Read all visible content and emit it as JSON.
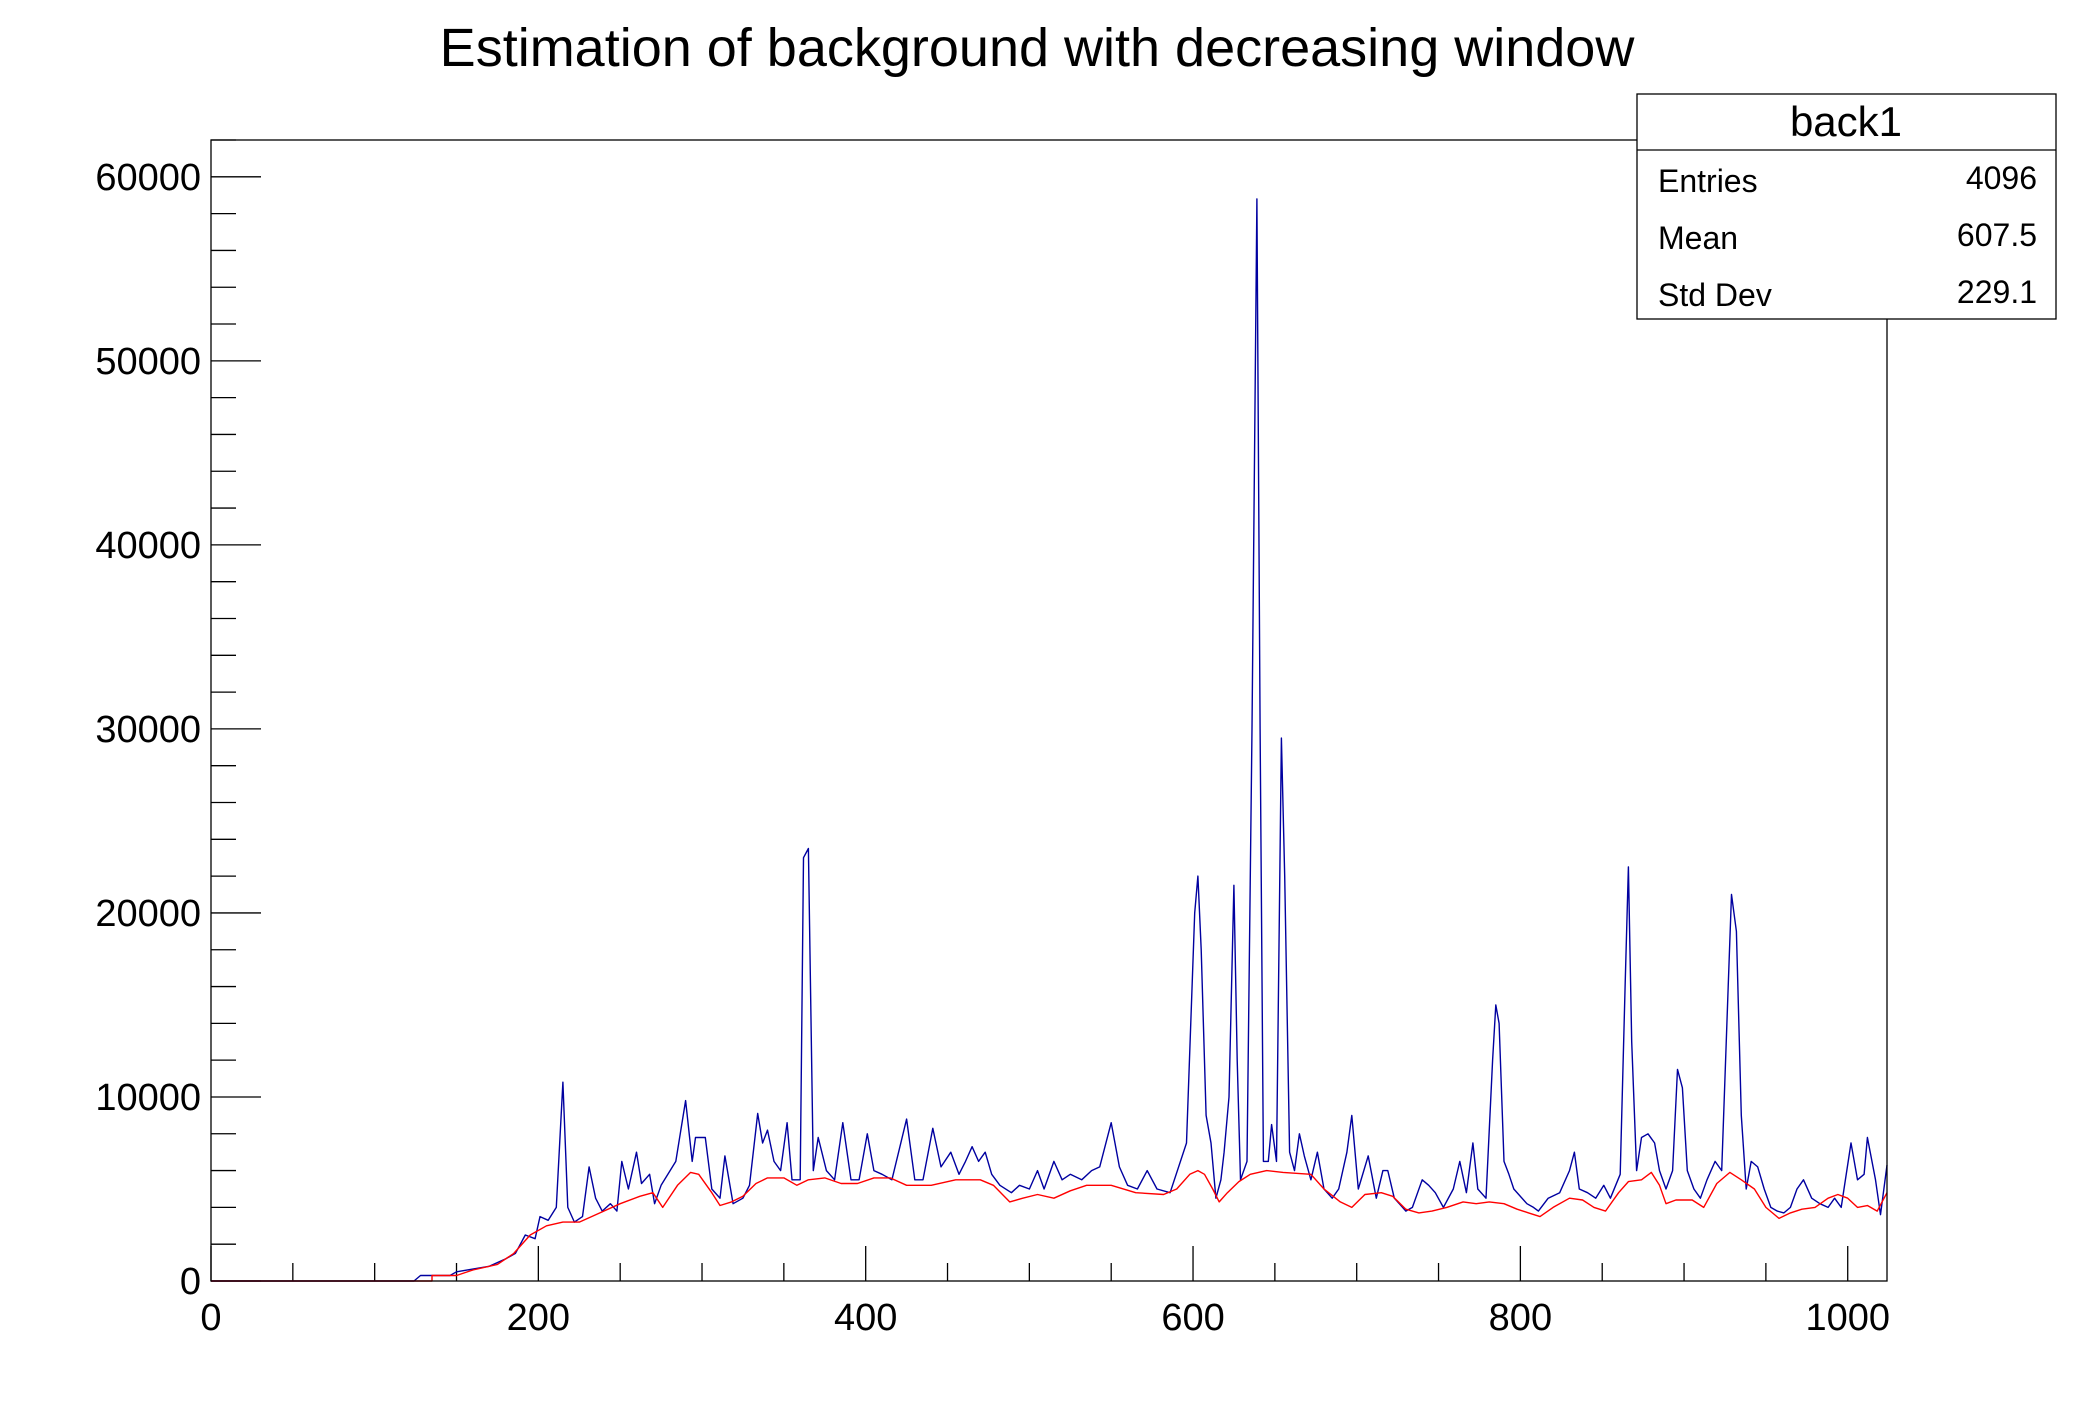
{
  "chart_data": {
    "type": "line",
    "title": "Estimation of background with decreasing window",
    "xlabel": "",
    "ylabel": "",
    "xlim": [
      0,
      1024
    ],
    "ylim": [
      0,
      62000
    ],
    "x_ticks": [
      0,
      200,
      400,
      600,
      800,
      1000
    ],
    "y_ticks": [
      0,
      10000,
      20000,
      30000,
      40000,
      50000,
      60000
    ],
    "grid": false,
    "colors": {
      "spectrum": "#0000a0",
      "background": "#ff0000"
    },
    "stats_box": {
      "name": "back1",
      "rows": [
        {
          "label": "Entries",
          "value": "4096"
        },
        {
          "label": "Mean",
          "value": "607.5"
        },
        {
          "label": "Std Dev",
          "value": "229.1"
        }
      ],
      "placement": "top-right"
    },
    "series": [
      {
        "points": [
          [
            0,
            0
          ],
          [
            124,
            0
          ],
          [
            128,
            300
          ],
          [
            146,
            300
          ],
          [
            150,
            500
          ],
          [
            170,
            800
          ],
          [
            180,
            1200
          ],
          [
            186,
            1500
          ],
          [
            192,
            2500
          ],
          [
            198,
            2300
          ],
          [
            201,
            3500
          ],
          [
            206,
            3300
          ],
          [
            211,
            4000
          ],
          [
            215,
            10800
          ],
          [
            218,
            4000
          ],
          [
            222,
            3200
          ],
          [
            227,
            3500
          ],
          [
            231,
            6200
          ],
          [
            235,
            4500
          ],
          [
            239,
            3800
          ],
          [
            244,
            4200
          ],
          [
            248,
            3800
          ],
          [
            251,
            6500
          ],
          [
            255,
            5000
          ],
          [
            260,
            7000
          ],
          [
            263,
            5300
          ],
          [
            268,
            5800
          ],
          [
            271,
            4200
          ],
          [
            275,
            5200
          ],
          [
            284,
            6500
          ],
          [
            290,
            9800
          ],
          [
            294,
            6500
          ],
          [
            296,
            7800
          ],
          [
            302,
            7800
          ],
          [
            306,
            5000
          ],
          [
            311,
            4500
          ],
          [
            314,
            6800
          ],
          [
            319,
            4200
          ],
          [
            325,
            4500
          ],
          [
            329,
            5200
          ],
          [
            334,
            9100
          ],
          [
            337,
            7500
          ],
          [
            340,
            8200
          ],
          [
            344,
            6500
          ],
          [
            348,
            6000
          ],
          [
            352,
            8600
          ],
          [
            355,
            5500
          ],
          [
            360,
            5500
          ],
          [
            362,
            23000
          ],
          [
            365,
            23500
          ],
          [
            368,
            6000
          ],
          [
            371,
            7800
          ],
          [
            376,
            6000
          ],
          [
            381,
            5500
          ],
          [
            386,
            8600
          ],
          [
            391,
            5500
          ],
          [
            396,
            5500
          ],
          [
            401,
            8000
          ],
          [
            405,
            6000
          ],
          [
            410,
            5800
          ],
          [
            416,
            5500
          ],
          [
            425,
            8800
          ],
          [
            430,
            5500
          ],
          [
            435,
            5500
          ],
          [
            441,
            8300
          ],
          [
            446,
            6200
          ],
          [
            452,
            7000
          ],
          [
            457,
            5800
          ],
          [
            461,
            6500
          ],
          [
            465,
            7300
          ],
          [
            469,
            6500
          ],
          [
            473,
            7000
          ],
          [
            477,
            5800
          ],
          [
            482,
            5200
          ],
          [
            489,
            4800
          ],
          [
            494,
            5200
          ],
          [
            500,
            5000
          ],
          [
            505,
            6000
          ],
          [
            509,
            5000
          ],
          [
            515,
            6500
          ],
          [
            520,
            5500
          ],
          [
            525,
            5800
          ],
          [
            532,
            5500
          ],
          [
            538,
            6000
          ],
          [
            543,
            6200
          ],
          [
            550,
            8600
          ],
          [
            555,
            6200
          ],
          [
            560,
            5200
          ],
          [
            566,
            5000
          ],
          [
            572,
            6000
          ],
          [
            578,
            5000
          ],
          [
            586,
            4800
          ],
          [
            596,
            7500
          ],
          [
            601,
            20000
          ],
          [
            603,
            22000
          ],
          [
            605,
            18000
          ],
          [
            608,
            9000
          ],
          [
            611,
            7500
          ],
          [
            614,
            4500
          ],
          [
            617,
            5500
          ],
          [
            619,
            7000
          ],
          [
            622,
            10000
          ],
          [
            625,
            21500
          ],
          [
            627,
            12000
          ],
          [
            629,
            5500
          ],
          [
            633,
            6500
          ],
          [
            636,
            30000
          ],
          [
            639,
            58800
          ],
          [
            641,
            30000
          ],
          [
            643,
            6500
          ],
          [
            646,
            6500
          ],
          [
            648,
            8500
          ],
          [
            651,
            6500
          ],
          [
            654,
            29500
          ],
          [
            656,
            22000
          ],
          [
            659,
            7000
          ],
          [
            662,
            6000
          ],
          [
            665,
            8000
          ],
          [
            668,
            6800
          ],
          [
            672,
            5500
          ],
          [
            676,
            7000
          ],
          [
            680,
            5000
          ],
          [
            685,
            4500
          ],
          [
            689,
            5000
          ],
          [
            694,
            7000
          ],
          [
            697,
            9000
          ],
          [
            701,
            5000
          ],
          [
            707,
            6800
          ],
          [
            712,
            4500
          ],
          [
            716,
            6000
          ],
          [
            719,
            6000
          ],
          [
            723,
            4500
          ],
          [
            726,
            4200
          ],
          [
            730,
            3800
          ],
          [
            734,
            4000
          ],
          [
            740,
            5500
          ],
          [
            744,
            5200
          ],
          [
            748,
            4800
          ],
          [
            753,
            4000
          ],
          [
            759,
            5000
          ],
          [
            763,
            6500
          ],
          [
            767,
            4800
          ],
          [
            771,
            7500
          ],
          [
            774,
            5000
          ],
          [
            779,
            4500
          ],
          [
            783,
            12000
          ],
          [
            785,
            15000
          ],
          [
            787,
            14000
          ],
          [
            790,
            6500
          ],
          [
            793,
            5800
          ],
          [
            796,
            5000
          ],
          [
            804,
            4200
          ],
          [
            808,
            4000
          ],
          [
            811,
            3800
          ],
          [
            817,
            4500
          ],
          [
            824,
            4800
          ],
          [
            830,
            6000
          ],
          [
            833,
            7000
          ],
          [
            836,
            5000
          ],
          [
            841,
            4800
          ],
          [
            846,
            4500
          ],
          [
            851,
            5200
          ],
          [
            855,
            4500
          ],
          [
            861,
            5800
          ],
          [
            864,
            16000
          ],
          [
            866,
            22500
          ],
          [
            868,
            13000
          ],
          [
            871,
            6000
          ],
          [
            874,
            7800
          ],
          [
            878,
            8000
          ],
          [
            882,
            7500
          ],
          [
            885,
            6000
          ],
          [
            889,
            5000
          ],
          [
            893,
            6000
          ],
          [
            896,
            11500
          ],
          [
            899,
            10500
          ],
          [
            902,
            6000
          ],
          [
            906,
            5000
          ],
          [
            910,
            4500
          ],
          [
            914,
            5500
          ],
          [
            919,
            6500
          ],
          [
            923,
            6000
          ],
          [
            927,
            16000
          ],
          [
            929,
            21000
          ],
          [
            932,
            19000
          ],
          [
            935,
            9000
          ],
          [
            938,
            5000
          ],
          [
            941,
            6500
          ],
          [
            945,
            6200
          ],
          [
            949,
            5000
          ],
          [
            953,
            4000
          ],
          [
            957,
            3800
          ],
          [
            961,
            3700
          ],
          [
            965,
            4000
          ],
          [
            969,
            5000
          ],
          [
            973,
            5500
          ],
          [
            978,
            4500
          ],
          [
            983,
            4200
          ],
          [
            988,
            4000
          ],
          [
            992,
            4500
          ],
          [
            996,
            4000
          ],
          [
            1002,
            7500
          ],
          [
            1006,
            5500
          ],
          [
            1010,
            5800
          ],
          [
            1012,
            7800
          ],
          [
            1017,
            5500
          ],
          [
            1020,
            3600
          ],
          [
            1024,
            6300
          ]
        ]
      },
      {
        "points": [
          [
            0,
            0
          ],
          [
            135,
            0
          ],
          [
            135,
            300
          ],
          [
            150,
            300
          ],
          [
            160,
            600
          ],
          [
            175,
            900
          ],
          [
            185,
            1500
          ],
          [
            195,
            2500
          ],
          [
            205,
            3000
          ],
          [
            215,
            3200
          ],
          [
            225,
            3200
          ],
          [
            240,
            3800
          ],
          [
            250,
            4200
          ],
          [
            262,
            4600
          ],
          [
            270,
            4800
          ],
          [
            276,
            4000
          ],
          [
            285,
            5200
          ],
          [
            293,
            5900
          ],
          [
            298,
            5800
          ],
          [
            306,
            4800
          ],
          [
            311,
            4100
          ],
          [
            318,
            4300
          ],
          [
            325,
            4600
          ],
          [
            333,
            5300
          ],
          [
            340,
            5600
          ],
          [
            350,
            5600
          ],
          [
            358,
            5200
          ],
          [
            365,
            5500
          ],
          [
            375,
            5600
          ],
          [
            385,
            5300
          ],
          [
            395,
            5300
          ],
          [
            405,
            5600
          ],
          [
            415,
            5600
          ],
          [
            425,
            5200
          ],
          [
            440,
            5200
          ],
          [
            455,
            5500
          ],
          [
            470,
            5500
          ],
          [
            478,
            5200
          ],
          [
            488,
            4300
          ],
          [
            496,
            4500
          ],
          [
            505,
            4700
          ],
          [
            515,
            4500
          ],
          [
            525,
            4900
          ],
          [
            535,
            5200
          ],
          [
            550,
            5200
          ],
          [
            565,
            4800
          ],
          [
            582,
            4700
          ],
          [
            590,
            5000
          ],
          [
            598,
            5800
          ],
          [
            603,
            6000
          ],
          [
            607,
            5800
          ],
          [
            612,
            5000
          ],
          [
            616,
            4300
          ],
          [
            621,
            4800
          ],
          [
            628,
            5400
          ],
          [
            635,
            5800
          ],
          [
            645,
            6000
          ],
          [
            655,
            5900
          ],
          [
            672,
            5800
          ],
          [
            680,
            5000
          ],
          [
            690,
            4300
          ],
          [
            697,
            4000
          ],
          [
            705,
            4700
          ],
          [
            715,
            4800
          ],
          [
            722,
            4600
          ],
          [
            730,
            3900
          ],
          [
            738,
            3700
          ],
          [
            746,
            3800
          ],
          [
            755,
            4000
          ],
          [
            765,
            4300
          ],
          [
            773,
            4200
          ],
          [
            781,
            4300
          ],
          [
            790,
            4200
          ],
          [
            798,
            3900
          ],
          [
            805,
            3700
          ],
          [
            812,
            3500
          ],
          [
            820,
            4000
          ],
          [
            830,
            4500
          ],
          [
            838,
            4400
          ],
          [
            845,
            4000
          ],
          [
            852,
            3800
          ],
          [
            860,
            4800
          ],
          [
            866,
            5400
          ],
          [
            874,
            5500
          ],
          [
            880,
            5900
          ],
          [
            885,
            5200
          ],
          [
            889,
            4200
          ],
          [
            895,
            4400
          ],
          [
            905,
            4400
          ],
          [
            912,
            4000
          ],
          [
            920,
            5300
          ],
          [
            928,
            5900
          ],
          [
            935,
            5500
          ],
          [
            943,
            5000
          ],
          [
            950,
            4000
          ],
          [
            958,
            3400
          ],
          [
            965,
            3700
          ],
          [
            972,
            3900
          ],
          [
            980,
            4000
          ],
          [
            988,
            4500
          ],
          [
            994,
            4700
          ],
          [
            1000,
            4500
          ],
          [
            1006,
            4000
          ],
          [
            1012,
            4100
          ],
          [
            1018,
            3800
          ],
          [
            1024,
            4800
          ]
        ]
      }
    ]
  }
}
